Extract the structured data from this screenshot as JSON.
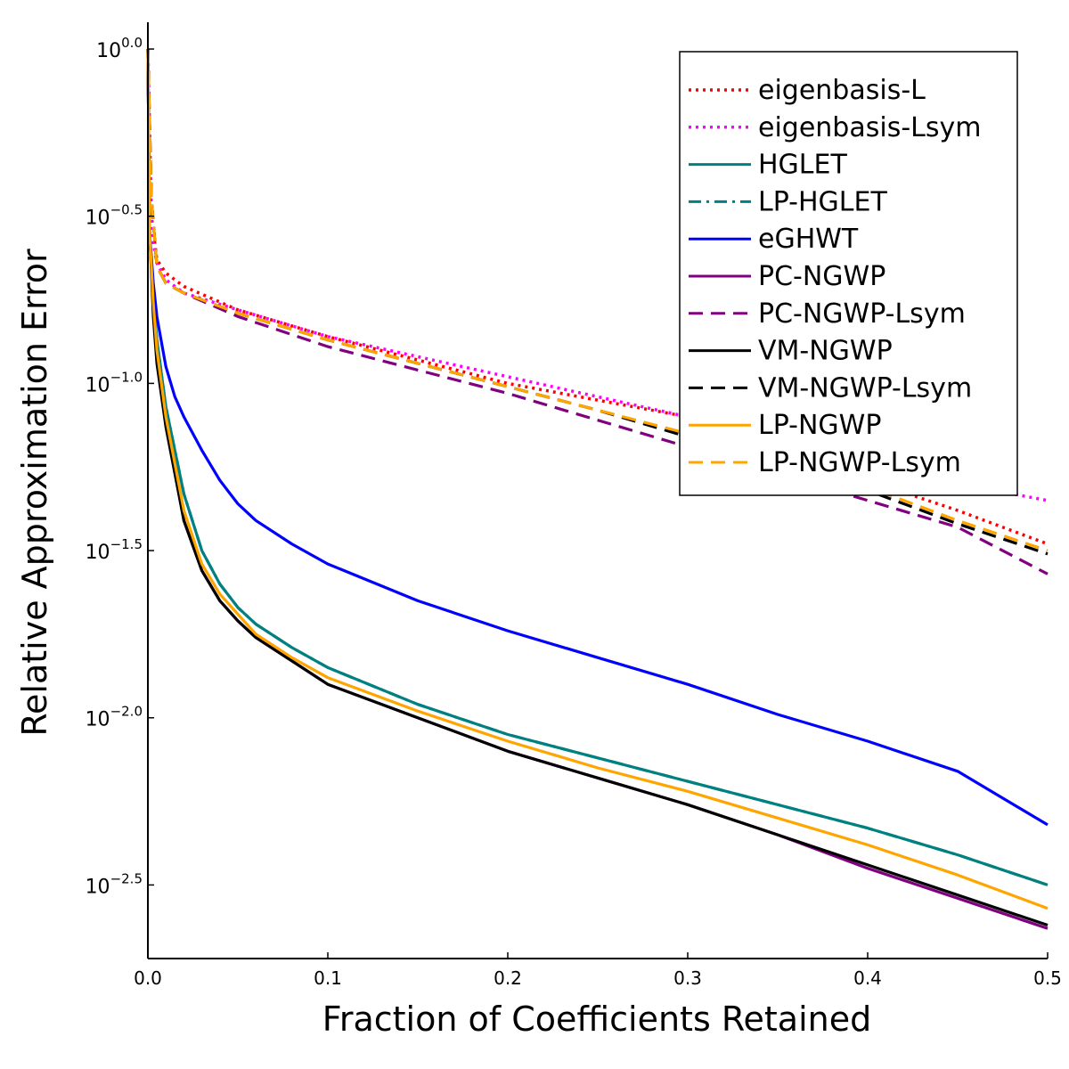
{
  "chart_data": {
    "type": "line",
    "title": "",
    "xlabel": "Fraction of Coefficients Retained",
    "ylabel": "Relative Approximation Error",
    "xlim": [
      0,
      0.5
    ],
    "ylim_log10": [
      -2.72,
      0.08
    ],
    "yscale": "log10",
    "grid": false,
    "legend_position": "top-right",
    "x_ticks": [
      {
        "value": 0.0,
        "label": "0.0"
      },
      {
        "value": 0.1,
        "label": "0.1"
      },
      {
        "value": 0.2,
        "label": "0.2"
      },
      {
        "value": 0.3,
        "label": "0.3"
      },
      {
        "value": 0.4,
        "label": "0.4"
      },
      {
        "value": 0.5,
        "label": "0.5"
      }
    ],
    "y_ticks": [
      {
        "value": 0.0,
        "base": "10",
        "exp": "0.0"
      },
      {
        "value": -0.5,
        "base": "10",
        "exp": "−0.5"
      },
      {
        "value": -1.0,
        "base": "10",
        "exp": "−1.0"
      },
      {
        "value": -1.5,
        "base": "10",
        "exp": "−1.5"
      },
      {
        "value": -2.0,
        "base": "10",
        "exp": "−2.0"
      },
      {
        "value": -2.5,
        "base": "10",
        "exp": "−2.5"
      }
    ],
    "series": [
      {
        "name": "eigenbasis-L",
        "color": "#ff0000",
        "dash": "dot",
        "x": [
          0,
          0.002,
          0.005,
          0.01,
          0.02,
          0.05,
          0.1,
          0.15,
          0.2,
          0.25,
          0.3,
          0.35,
          0.4,
          0.45,
          0.5
        ],
        "log10_y": [
          0,
          -0.5,
          -0.63,
          -0.67,
          -0.71,
          -0.78,
          -0.86,
          -0.93,
          -1.0,
          -1.05,
          -1.1,
          -1.2,
          -1.29,
          -1.38,
          -1.48
        ]
      },
      {
        "name": "eigenbasis-Lsym",
        "color": "#ff00ff",
        "dash": "dot",
        "x": [
          0,
          0.002,
          0.005,
          0.01,
          0.02,
          0.05,
          0.1,
          0.15,
          0.2,
          0.25,
          0.3,
          0.35,
          0.4,
          0.45,
          0.5
        ],
        "log10_y": [
          0,
          -0.55,
          -0.64,
          -0.69,
          -0.73,
          -0.78,
          -0.86,
          -0.92,
          -0.98,
          -1.04,
          -1.1,
          -1.16,
          -1.23,
          -1.3,
          -1.35
        ]
      },
      {
        "name": "HGLET",
        "color": "#008080",
        "dash": "solid",
        "x": [
          0,
          0.001,
          0.003,
          0.005,
          0.01,
          0.02,
          0.03,
          0.04,
          0.05,
          0.06,
          0.08,
          0.1,
          0.15,
          0.2,
          0.25,
          0.3,
          0.35,
          0.4,
          0.45,
          0.5
        ],
        "log10_y": [
          0,
          -0.55,
          -0.75,
          -0.87,
          -1.07,
          -1.33,
          -1.5,
          -1.6,
          -1.67,
          -1.72,
          -1.79,
          -1.85,
          -1.96,
          -2.05,
          -2.12,
          -2.19,
          -2.26,
          -2.33,
          -2.41,
          -2.5
        ]
      },
      {
        "name": "LP-HGLET",
        "color": "#008080",
        "dash": "dashdot",
        "x": [
          0,
          0.001,
          0.003,
          0.005,
          0.01,
          0.02,
          0.03,
          0.04,
          0.05,
          0.06,
          0.08,
          0.1,
          0.15,
          0.2,
          0.25,
          0.3,
          0.35,
          0.4,
          0.45,
          0.5
        ],
        "log10_y": [
          0,
          -0.55,
          -0.75,
          -0.87,
          -1.07,
          -1.33,
          -1.5,
          -1.6,
          -1.67,
          -1.72,
          -1.79,
          -1.85,
          -1.96,
          -2.05,
          -2.12,
          -2.19,
          -2.26,
          -2.33,
          -2.41,
          -2.5
        ]
      },
      {
        "name": "eGHWT",
        "color": "#0000ff",
        "dash": "solid",
        "x": [
          0,
          0.001,
          0.003,
          0.005,
          0.01,
          0.015,
          0.02,
          0.03,
          0.04,
          0.05,
          0.06,
          0.08,
          0.1,
          0.15,
          0.2,
          0.25,
          0.3,
          0.35,
          0.4,
          0.45,
          0.5
        ],
        "log10_y": [
          0,
          -0.55,
          -0.7,
          -0.8,
          -0.95,
          -1.04,
          -1.1,
          -1.2,
          -1.29,
          -1.36,
          -1.41,
          -1.48,
          -1.54,
          -1.65,
          -1.74,
          -1.82,
          -1.9,
          -1.99,
          -2.07,
          -2.16,
          -2.32
        ]
      },
      {
        "name": "PC-NGWP",
        "color": "#800080",
        "dash": "solid",
        "x": [
          0,
          0.001,
          0.003,
          0.005,
          0.01,
          0.02,
          0.03,
          0.04,
          0.05,
          0.06,
          0.08,
          0.1,
          0.15,
          0.2,
          0.25,
          0.3,
          0.35,
          0.4,
          0.45,
          0.5
        ],
        "log10_y": [
          0,
          -0.55,
          -0.77,
          -0.92,
          -1.12,
          -1.41,
          -1.56,
          -1.65,
          -1.71,
          -1.76,
          -1.83,
          -1.9,
          -2.0,
          -2.1,
          -2.18,
          -2.26,
          -2.35,
          -2.45,
          -2.54,
          -2.63
        ]
      },
      {
        "name": "PC-NGWP-Lsym",
        "color": "#800080",
        "dash": "dash",
        "x": [
          0,
          0.002,
          0.005,
          0.01,
          0.02,
          0.05,
          0.1,
          0.15,
          0.2,
          0.25,
          0.3,
          0.35,
          0.4,
          0.45,
          0.5
        ],
        "log10_y": [
          0,
          -0.45,
          -0.65,
          -0.7,
          -0.73,
          -0.8,
          -0.89,
          -0.96,
          -1.03,
          -1.11,
          -1.19,
          -1.27,
          -1.35,
          -1.43,
          -1.57
        ]
      },
      {
        "name": "VM-NGWP",
        "color": "#000000",
        "dash": "solid",
        "x": [
          0,
          0.001,
          0.003,
          0.005,
          0.01,
          0.02,
          0.03,
          0.04,
          0.05,
          0.06,
          0.08,
          0.1,
          0.15,
          0.2,
          0.25,
          0.3,
          0.35,
          0.4,
          0.45,
          0.5
        ],
        "log10_y": [
          0,
          -0.55,
          -0.8,
          -0.94,
          -1.13,
          -1.41,
          -1.56,
          -1.65,
          -1.71,
          -1.76,
          -1.83,
          -1.9,
          -2.0,
          -2.1,
          -2.18,
          -2.26,
          -2.35,
          -2.44,
          -2.53,
          -2.62
        ]
      },
      {
        "name": "VM-NGWP-Lsym",
        "color": "#000000",
        "dash": "dash",
        "x": [
          0,
          0.002,
          0.005,
          0.01,
          0.02,
          0.05,
          0.1,
          0.15,
          0.2,
          0.25,
          0.3,
          0.35,
          0.4,
          0.45,
          0.5
        ],
        "log10_y": [
          0,
          -0.45,
          -0.65,
          -0.7,
          -0.73,
          -0.79,
          -0.87,
          -0.94,
          -1.01,
          -1.08,
          -1.16,
          -1.23,
          -1.32,
          -1.42,
          -1.51
        ]
      },
      {
        "name": "LP-NGWP",
        "color": "#ffa500",
        "dash": "solid",
        "x": [
          0,
          0.001,
          0.003,
          0.005,
          0.01,
          0.02,
          0.03,
          0.04,
          0.05,
          0.06,
          0.08,
          0.1,
          0.15,
          0.2,
          0.25,
          0.3,
          0.35,
          0.4,
          0.45,
          0.5
        ],
        "log10_y": [
          0,
          -0.55,
          -0.76,
          -0.9,
          -1.1,
          -1.38,
          -1.54,
          -1.63,
          -1.69,
          -1.75,
          -1.82,
          -1.88,
          -1.98,
          -2.07,
          -2.15,
          -2.22,
          -2.3,
          -2.38,
          -2.47,
          -2.57
        ]
      },
      {
        "name": "LP-NGWP-Lsym",
        "color": "#ffa500",
        "dash": "dash",
        "x": [
          0,
          0.002,
          0.005,
          0.01,
          0.02,
          0.05,
          0.1,
          0.15,
          0.2,
          0.25,
          0.3,
          0.35,
          0.4,
          0.45,
          0.5
        ],
        "log10_y": [
          0,
          -0.45,
          -0.65,
          -0.7,
          -0.73,
          -0.79,
          -0.87,
          -0.94,
          -1.01,
          -1.08,
          -1.15,
          -1.22,
          -1.31,
          -1.41,
          -1.5
        ]
      }
    ]
  }
}
